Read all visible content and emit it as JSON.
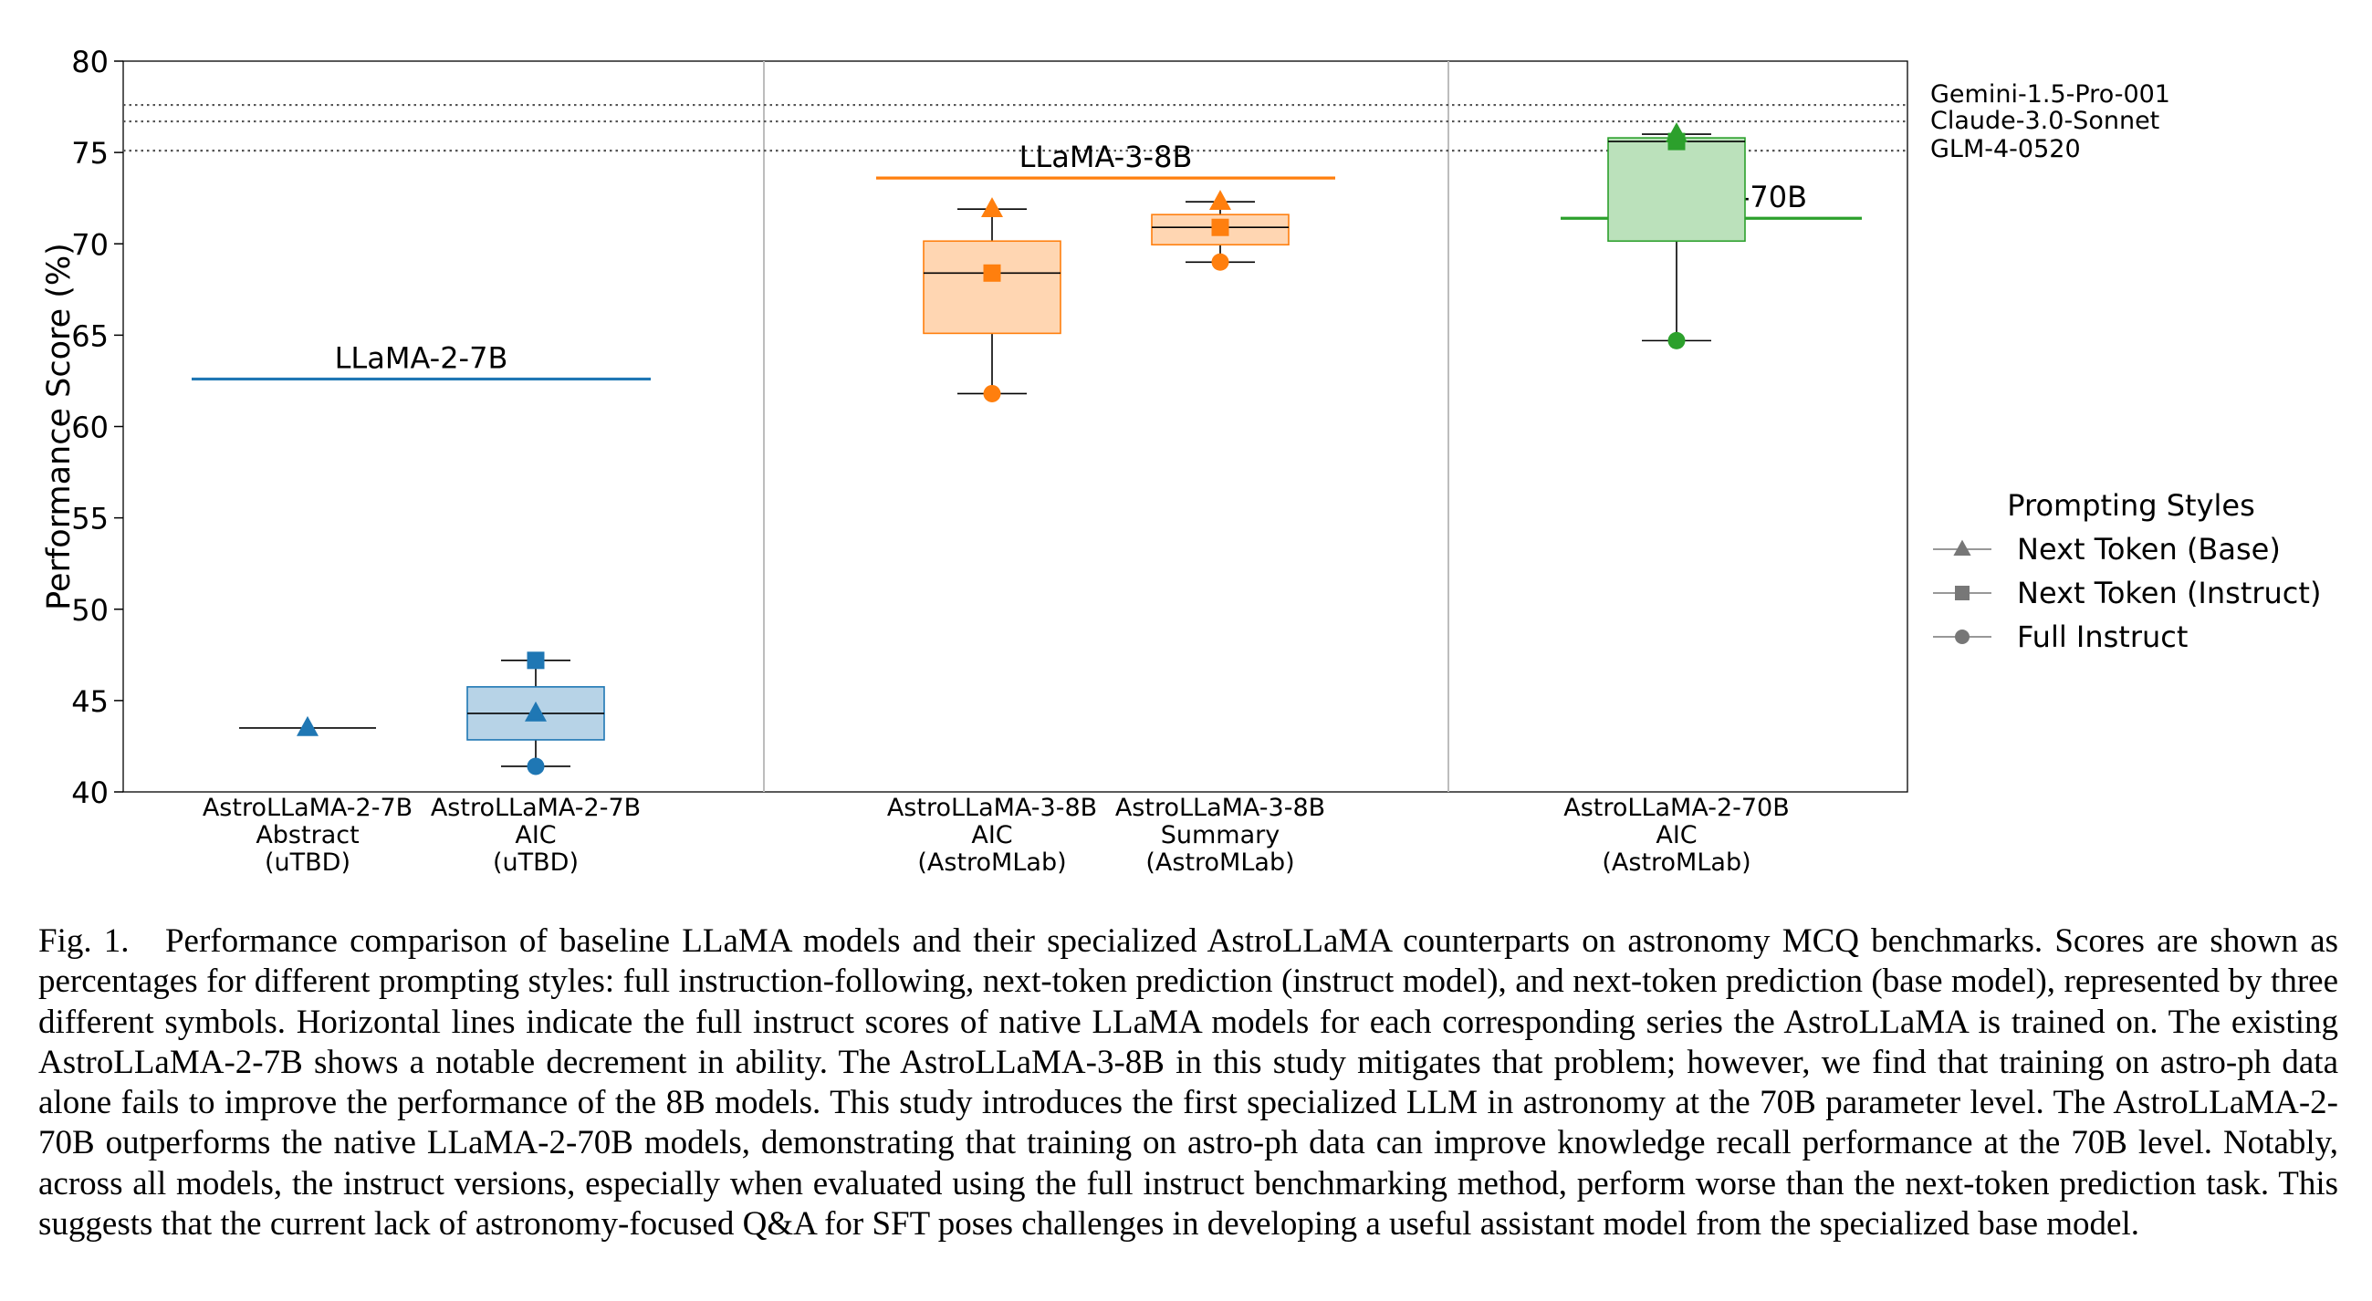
{
  "chart_data": {
    "type": "box",
    "ylabel": "Performance Score (%)",
    "ylim": [
      40,
      80
    ],
    "yticks": [
      40,
      45,
      50,
      55,
      60,
      65,
      70,
      75,
      80
    ],
    "grid": false,
    "legend_placement": "right",
    "colors": {
      "blue": "#1f77b4",
      "orange": "#ff7f0e",
      "green": "#2ca02c",
      "reference_line": "#555555",
      "separator": "#bdbdbd"
    },
    "groups": [
      {
        "baseline_label": "LLaMA-2-7B",
        "baseline_value": 62.6,
        "color": "#1f77b4",
        "models": [
          {
            "label": [
              "AstroLLaMA-2-7B",
              "Abstract",
              "(uTBD)"
            ],
            "next_token_base": 43.5,
            "next_token_instruct": null,
            "full_instruct": null
          },
          {
            "label": [
              "AstroLLaMA-2-7B",
              "AIC",
              "(uTBD)"
            ],
            "next_token_base": 44.3,
            "next_token_instruct": 47.2,
            "full_instruct": 41.4
          }
        ]
      },
      {
        "baseline_label": "LLaMA-3-8B",
        "baseline_value": 73.6,
        "color": "#ff7f0e",
        "models": [
          {
            "label": [
              "AstroLLaMA-3-8B",
              "AIC",
              "(AstroMLab)"
            ],
            "next_token_base": 71.9,
            "next_token_instruct": 68.4,
            "full_instruct": 61.8
          },
          {
            "label": [
              "AstroLLaMA-3-8B",
              "Summary",
              "(AstroMLab)"
            ],
            "next_token_base": 72.3,
            "next_token_instruct": 70.9,
            "full_instruct": 69.0
          }
        ]
      },
      {
        "baseline_label": "LLaMA-2-70B",
        "baseline_value": 71.4,
        "color": "#2ca02c",
        "models": [
          {
            "label": [
              "AstroLLaMA-2-70B",
              "AIC",
              "(AstroMLab)"
            ],
            "next_token_base": 76.0,
            "next_token_instruct": 75.6,
            "full_instruct": 64.7
          }
        ]
      }
    ],
    "reference_lines": [
      {
        "name": "Gemini-1.5-Pro-001",
        "value": 77.6
      },
      {
        "name": "Claude-3.0-Sonnet",
        "value": 76.7
      },
      {
        "name": "GLM-4-0520",
        "value": 75.1
      }
    ],
    "legend": {
      "title": "Prompting Styles",
      "entries": [
        {
          "label": "Next Token (Base)",
          "marker": "triangle"
        },
        {
          "label": "Next Token (Instruct)",
          "marker": "square"
        },
        {
          "label": "Full Instruct",
          "marker": "circle"
        }
      ]
    }
  },
  "caption": {
    "lead": "Fig. 1.",
    "text": "Performance comparison of baseline LLaMA models and their specialized AstroLLaMA counterparts on astronomy MCQ benchmarks. Scores are shown as percentages for different prompting styles: full instruction-following, next-token prediction (instruct model), and next-token prediction (base model), represented by three different symbols. Horizontal lines indicate the full instruct scores of native LLaMA models for each corresponding series the AstroLLaMA is trained on. The existing AstroLLaMA-2-7B shows a notable decrement in ability. The AstroLLaMA-3-8B in this study mitigates that problem; however, we find that training on astro-ph data alone fails to improve the performance of the 8B models. This study introduces the first specialized LLM in astronomy at the 70B parameter level. The AstroLLaMA-2-70B outperforms the native LLaMA-2-70B models, demonstrating that training on astro-ph data can improve knowledge recall performance at the 70B level. Notably, across all models, the instruct versions, especially when evaluated using the full instruct benchmarking method, perform worse than the next-token prediction task. This suggests that the current lack of astronomy-focused Q&A for SFT poses challenges in developing a useful assistant model from the specialized base model."
  }
}
